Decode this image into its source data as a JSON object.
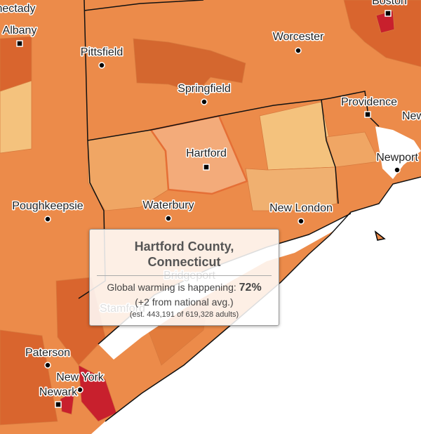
{
  "cities": [
    "Schenectady",
    "Albany",
    "Boston",
    "Worcester",
    "Pittsfield",
    "Springfield",
    "Providence",
    "New Bedford",
    "Newport",
    "Hartford",
    "Poughkeepsie",
    "Waterbury",
    "New London",
    "Bridgeport",
    "Stamford",
    "Paterson",
    "New York",
    "Newark"
  ],
  "tooltip": {
    "title": "Hartford County, Connecticut",
    "question": "Global warming is happening:",
    "value": "72%",
    "comparison": "(+2 from national avg.)",
    "estimate": "(est. 443,191 of 619,328 adults)"
  }
}
